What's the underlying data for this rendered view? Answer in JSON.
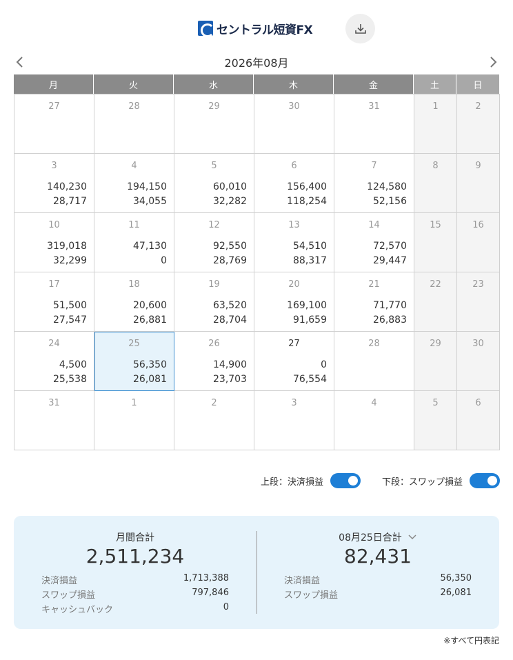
{
  "header": {
    "logo_text": "セントラル短資FX",
    "download_icon": "download-icon"
  },
  "nav": {
    "month_title": "2026年08月",
    "prev_icon": "chevron-left-icon",
    "next_icon": "chevron-right-icon"
  },
  "calendar": {
    "weekdays": [
      "月",
      "火",
      "水",
      "木",
      "金",
      "土",
      "日"
    ],
    "weeks": [
      [
        {
          "day": "27",
          "v1": "",
          "v2": ""
        },
        {
          "day": "28",
          "v1": "",
          "v2": ""
        },
        {
          "day": "29",
          "v1": "",
          "v2": ""
        },
        {
          "day": "30",
          "v1": "",
          "v2": ""
        },
        {
          "day": "31",
          "v1": "",
          "v2": ""
        },
        {
          "day": "1",
          "v1": "",
          "v2": ""
        },
        {
          "day": "2",
          "v1": "",
          "v2": ""
        }
      ],
      [
        {
          "day": "3",
          "v1": "140,230",
          "v2": "28,717"
        },
        {
          "day": "4",
          "v1": "194,150",
          "v2": "34,055"
        },
        {
          "day": "5",
          "v1": "60,010",
          "v2": "32,282"
        },
        {
          "day": "6",
          "v1": "156,400",
          "v2": "118,254"
        },
        {
          "day": "7",
          "v1": "124,580",
          "v2": "52,156"
        },
        {
          "day": "8",
          "v1": "",
          "v2": ""
        },
        {
          "day": "9",
          "v1": "",
          "v2": ""
        }
      ],
      [
        {
          "day": "10",
          "v1": "319,018",
          "v2": "32,299"
        },
        {
          "day": "11",
          "v1": "47,130",
          "v2": "0"
        },
        {
          "day": "12",
          "v1": "92,550",
          "v2": "28,769"
        },
        {
          "day": "13",
          "v1": "54,510",
          "v2": "88,317"
        },
        {
          "day": "14",
          "v1": "72,570",
          "v2": "29,447"
        },
        {
          "day": "15",
          "v1": "",
          "v2": ""
        },
        {
          "day": "16",
          "v1": "",
          "v2": ""
        }
      ],
      [
        {
          "day": "17",
          "v1": "51,500",
          "v2": "27,547"
        },
        {
          "day": "18",
          "v1": "20,600",
          "v2": "26,881"
        },
        {
          "day": "19",
          "v1": "63,520",
          "v2": "28,704"
        },
        {
          "day": "20",
          "v1": "169,100",
          "v2": "91,659"
        },
        {
          "day": "21",
          "v1": "71,770",
          "v2": "26,883"
        },
        {
          "day": "22",
          "v1": "",
          "v2": ""
        },
        {
          "day": "23",
          "v1": "",
          "v2": ""
        }
      ],
      [
        {
          "day": "24",
          "v1": "4,500",
          "v2": "25,538"
        },
        {
          "day": "25",
          "v1": "56,350",
          "v2": "26,081",
          "selected": true
        },
        {
          "day": "26",
          "v1": "14,900",
          "v2": "23,703"
        },
        {
          "day": "27",
          "v1": "0",
          "v2": "76,554",
          "today": true
        },
        {
          "day": "28",
          "v1": "",
          "v2": ""
        },
        {
          "day": "29",
          "v1": "",
          "v2": ""
        },
        {
          "day": "30",
          "v1": "",
          "v2": ""
        }
      ],
      [
        {
          "day": "31",
          "v1": "",
          "v2": ""
        },
        {
          "day": "1",
          "v1": "",
          "v2": ""
        },
        {
          "day": "2",
          "v1": "",
          "v2": ""
        },
        {
          "day": "3",
          "v1": "",
          "v2": ""
        },
        {
          "day": "4",
          "v1": "",
          "v2": ""
        },
        {
          "day": "5",
          "v1": "",
          "v2": ""
        },
        {
          "day": "6",
          "v1": "",
          "v2": ""
        }
      ]
    ]
  },
  "toggles": {
    "upper_label": "上段：決済損益",
    "upper_on": true,
    "lower_label": "下段：スワップ損益",
    "lower_on": true
  },
  "summary": {
    "monthly": {
      "title": "月間合計",
      "total": "2,511,234",
      "rows": [
        {
          "label": "決済損益",
          "value": "1,713,388"
        },
        {
          "label": "スワップ損益",
          "value": "797,846"
        },
        {
          "label": "キャッシュバック",
          "value": "0"
        }
      ]
    },
    "daily": {
      "title": "08月25日合計",
      "dropdown_icon": "chevron-down-icon",
      "total": "82,431",
      "rows": [
        {
          "label": "決済損益",
          "value": "56,350"
        },
        {
          "label": "スワップ損益",
          "value": "26,081"
        }
      ]
    }
  },
  "footnote": "※すべて円表記",
  "colors": {
    "header_weekday": "#8a8a8a",
    "header_weekend": "#a8a8a8",
    "accent": "#1e7fd6",
    "summary_bg": "#e6f3fb",
    "selected_border": "#3d8fd1"
  }
}
